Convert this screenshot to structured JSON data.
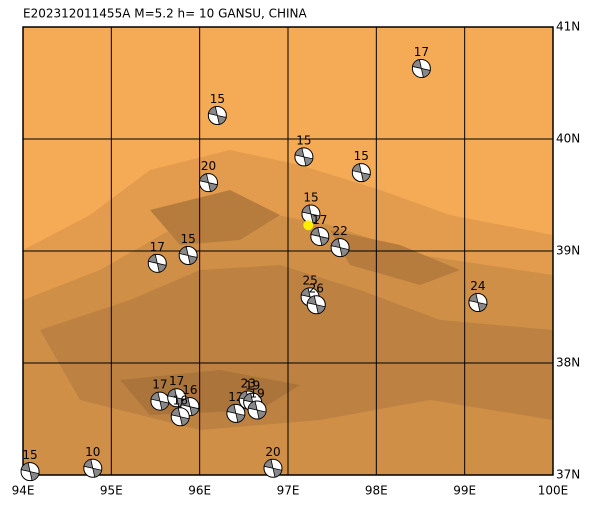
{
  "chart_data": {
    "type": "focal-map",
    "title": "E202312011455A  M=5.2  h= 10 GANSU, CHINA",
    "xlim": [
      94,
      100
    ],
    "ylim": [
      37,
      41
    ],
    "xticks": [
      {
        "value": 94,
        "label": "94E"
      },
      {
        "value": 95,
        "label": "95E"
      },
      {
        "value": 96,
        "label": "96E"
      },
      {
        "value": 97,
        "label": "97E"
      },
      {
        "value": 98,
        "label": "98E"
      },
      {
        "value": 99,
        "label": "99E"
      },
      {
        "value": 100,
        "label": "100E"
      }
    ],
    "yticks": [
      {
        "value": 37,
        "label": "37N"
      },
      {
        "value": 38,
        "label": "38N"
      },
      {
        "value": 39,
        "label": "39N"
      },
      {
        "value": 40,
        "label": "40N"
      },
      {
        "value": 41,
        "label": "41N"
      }
    ],
    "grid": true,
    "epicenter": {
      "lon": 97.23,
      "lat": 39.23,
      "color": "#ffee00"
    },
    "events": [
      {
        "lon": 98.51,
        "lat": 40.63,
        "depth": 17
      },
      {
        "lon": 96.2,
        "lat": 40.21,
        "depth": 15
      },
      {
        "lon": 97.18,
        "lat": 39.84,
        "depth": 15
      },
      {
        "lon": 97.83,
        "lat": 39.7,
        "depth": 15
      },
      {
        "lon": 96.1,
        "lat": 39.61,
        "depth": 20
      },
      {
        "lon": 97.26,
        "lat": 39.33,
        "depth": 15
      },
      {
        "lon": 97.36,
        "lat": 39.13,
        "depth": 17
      },
      {
        "lon": 97.59,
        "lat": 39.03,
        "depth": 22
      },
      {
        "lon": 95.52,
        "lat": 38.89,
        "depth": 17
      },
      {
        "lon": 95.87,
        "lat": 38.96,
        "depth": 15
      },
      {
        "lon": 99.15,
        "lat": 38.54,
        "depth": 24
      },
      {
        "lon": 97.25,
        "lat": 38.59,
        "depth": 25
      },
      {
        "lon": 97.32,
        "lat": 38.52,
        "depth": 26
      },
      {
        "lon": 95.55,
        "lat": 37.66,
        "depth": 17
      },
      {
        "lon": 95.74,
        "lat": 37.69,
        "depth": 17
      },
      {
        "lon": 95.89,
        "lat": 37.61,
        "depth": 16
      },
      {
        "lon": 95.78,
        "lat": 37.52,
        "depth": 16
      },
      {
        "lon": 96.41,
        "lat": 37.55,
        "depth": 12
      },
      {
        "lon": 96.55,
        "lat": 37.67,
        "depth": 23
      },
      {
        "lon": 96.6,
        "lat": 37.65,
        "depth": 19
      },
      {
        "lon": 96.65,
        "lat": 37.58,
        "depth": 19
      },
      {
        "lon": 94.08,
        "lat": 37.03,
        "depth": 15
      },
      {
        "lon": 94.79,
        "lat": 37.06,
        "depth": 10
      },
      {
        "lon": 96.83,
        "lat": 37.06,
        "depth": 20
      }
    ]
  }
}
